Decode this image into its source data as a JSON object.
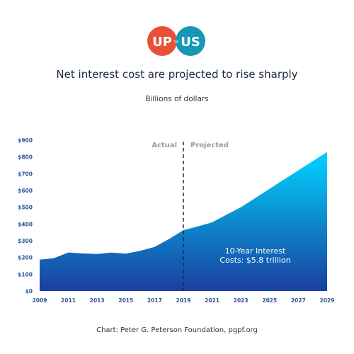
{
  "logo": {
    "left": "UP",
    "mid": "to",
    "right": "US",
    "color_left": "#e8503a",
    "color_right": "#1797b5"
  },
  "header": {
    "title": "Net interest cost are projected to rise sharply",
    "subtitle": "Billions of dollars"
  },
  "source": "Chart: Peter G. Peterson Foundation, pgpf.org",
  "chart_data": {
    "type": "area",
    "x": [
      2009,
      2010,
      2011,
      2012,
      2013,
      2014,
      2015,
      2016,
      2017,
      2018,
      2019,
      2020,
      2021,
      2022,
      2023,
      2024,
      2025,
      2026,
      2027,
      2028,
      2029
    ],
    "values": [
      187,
      196,
      230,
      224,
      221,
      229,
      223,
      240,
      263,
      310,
      363,
      385,
      410,
      455,
      500,
      555,
      610,
      665,
      720,
      775,
      830
    ],
    "ylim": [
      0,
      900
    ],
    "yticks": [
      "$0",
      "$100",
      "$200",
      "$300",
      "$400",
      "$500",
      "$600",
      "$700",
      "$800",
      "$900"
    ],
    "xticks": [
      "2009",
      "2011",
      "2013",
      "2015",
      "2017",
      "2019",
      "2021",
      "2023",
      "2025",
      "2027",
      "2029"
    ],
    "split_year": 2019,
    "labels": {
      "actual": "Actual",
      "projected": "Projected"
    },
    "annotation": {
      "line1": "10-Year Interest",
      "line2": "Costs: $5.8 trillion"
    },
    "colors": {
      "fill_top": "#00d4ff",
      "fill_bottom": "#1a3f9e",
      "axis_text": "#2f5596"
    },
    "grid": false
  }
}
